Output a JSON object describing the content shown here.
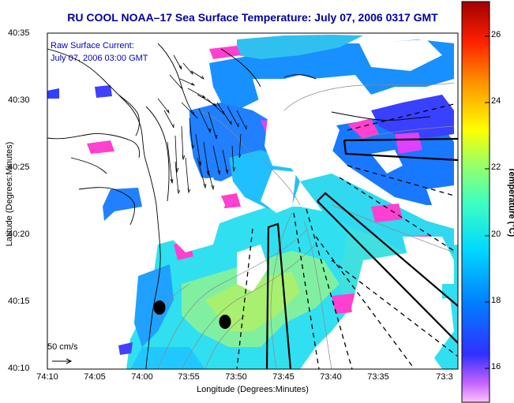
{
  "header": {
    "title": "RU COOL  NOAA–17  Sea Surface Temperature:  July 07, 2006 0317 GMT"
  },
  "annotation": {
    "line1": "Raw Surface Current:",
    "line2": "July 07, 2006 03:00 GMT"
  },
  "axes": {
    "xlabel": "Longitude (Degrees:Minutes)",
    "ylabel": "Latitude (Degrees:Minutes)",
    "xticks": [
      "74:10",
      "74:05",
      "74:00",
      "73:55",
      "73:50",
      "73:45",
      "73:40",
      "73:35",
      "73:3"
    ],
    "yticks": [
      "40:35",
      "40:30",
      "40:25",
      "40:20",
      "40:15",
      "40:10"
    ]
  },
  "colorbar": {
    "label": "Temperature (°C)",
    "ticks": [
      "26",
      "24",
      "22",
      "20",
      "18",
      "16"
    ],
    "range": [
      15,
      27.3
    ]
  },
  "legend": {
    "scale_label": "50 cm/s"
  },
  "colors": {
    "title": "#0000a0",
    "annotation": "#0000c0",
    "coast": "#000000",
    "bathymetry": "#8a8a8a"
  }
}
